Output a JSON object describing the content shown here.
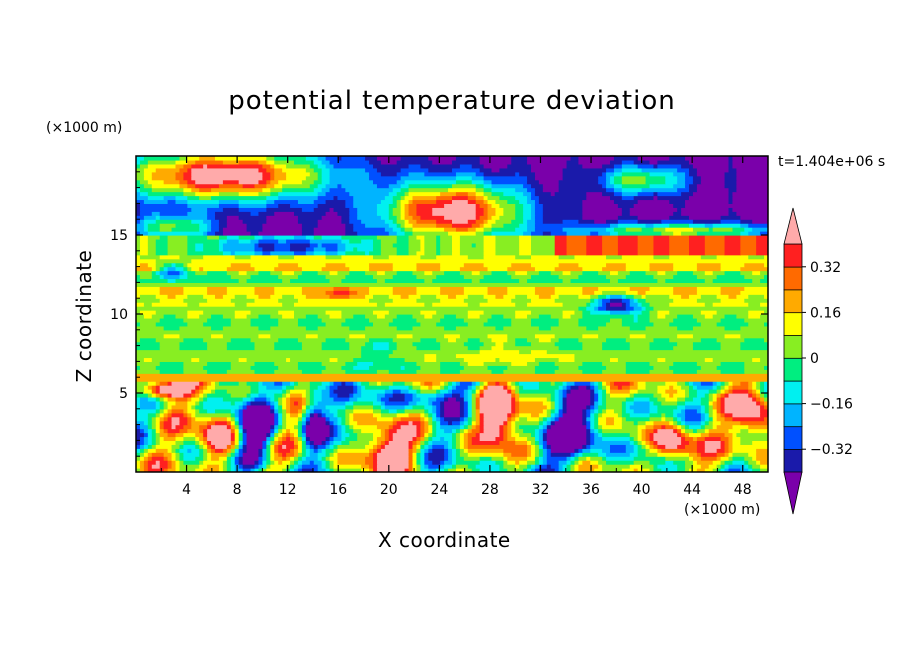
{
  "chart_data": {
    "type": "heatmap",
    "title": "potential temperature deviation",
    "xlabel": "X coordinate",
    "ylabel": "Z coordinate",
    "x_units": "(×1000 m)",
    "y_units": "(×1000 m)",
    "time_label": "t=1.404e+06 s",
    "xlim": [
      0,
      50
    ],
    "ylim": [
      0,
      20
    ],
    "x_ticks": [
      4,
      8,
      12,
      16,
      20,
      24,
      28,
      32,
      36,
      40,
      44,
      48
    ],
    "x_tick_labels": [
      "4",
      "8",
      "12",
      "16",
      "20",
      "24",
      "28",
      "32",
      "36",
      "40",
      "44",
      "48"
    ],
    "y_ticks": [
      5,
      10,
      15
    ],
    "y_tick_labels": [
      "5",
      "10",
      "15"
    ],
    "colorbar": {
      "levels": [
        -0.4,
        -0.32,
        -0.24,
        -0.16,
        -0.08,
        0,
        0.08,
        0.16,
        0.24,
        0.32,
        0.4
      ],
      "colors": [
        "#7a00aa",
        "#1a1aaa",
        "#0050ff",
        "#00b4ff",
        "#00f0f0",
        "#00ee80",
        "#88ee22",
        "#ffff00",
        "#ffaa00",
        "#ff6a00",
        "#ff2020",
        "#ffaaaa"
      ],
      "labels": [
        {
          "value": 0.32,
          "text": "0.32"
        },
        {
          "value": 0.16,
          "text": "0.16"
        },
        {
          "value": 0,
          "text": "0"
        },
        {
          "value": -0.16,
          "text": "−0.16"
        },
        {
          "value": -0.32,
          "text": "−0.32"
        }
      ]
    }
  }
}
